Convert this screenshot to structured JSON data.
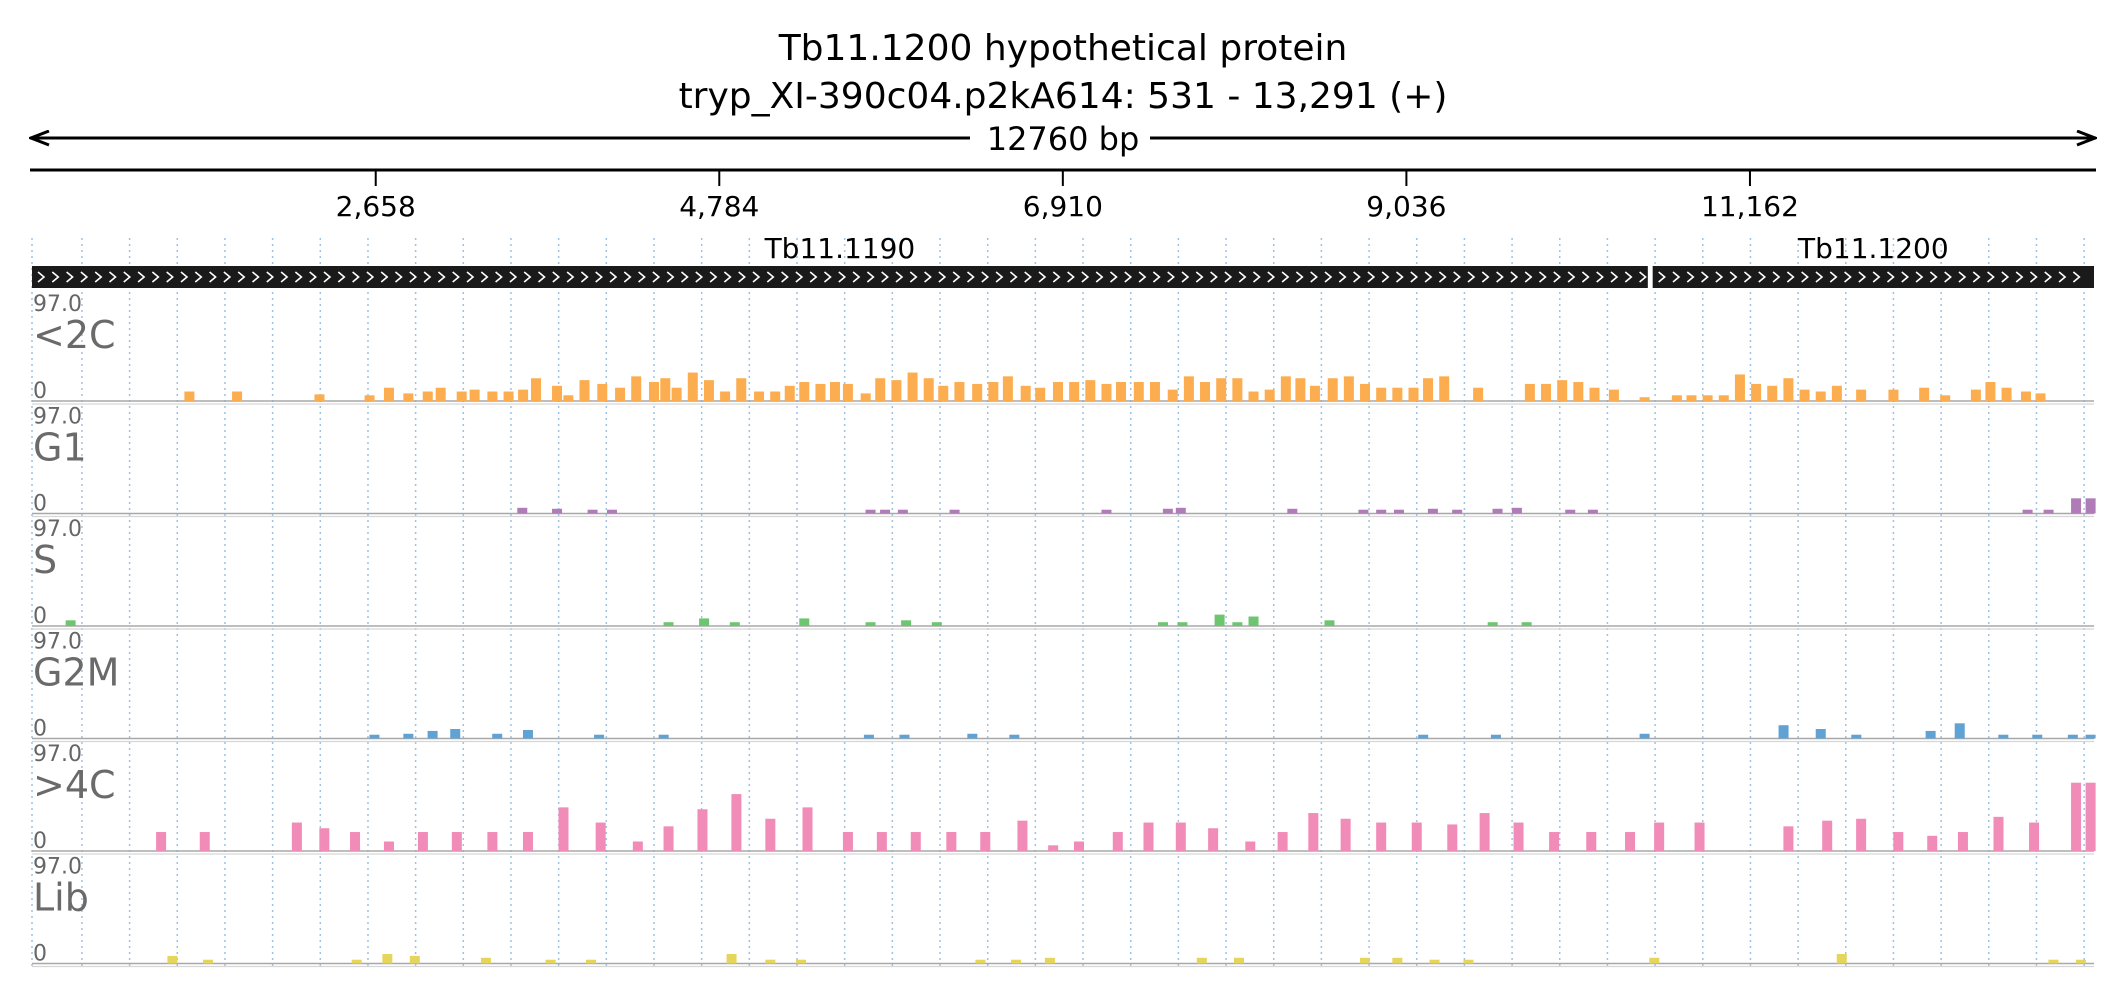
{
  "header": {
    "title_line1": "Tb11.1200  hypothetical protein",
    "title_line2": "tryp_XI-390c04.p2kA614: 531 - 13,291 (+)",
    "span_label": "12760 bp"
  },
  "chart_data": {
    "type": "bar",
    "x_range": [
      531,
      13291
    ],
    "ticks": [
      "2,658",
      "4,784",
      "6,910",
      "9,036",
      "11,162"
    ],
    "tick_values": [
      2658,
      4784,
      6910,
      9036,
      11162
    ],
    "genes": [
      {
        "name": "Tb11.1190",
        "start": 531,
        "end": 10530,
        "strand": "+"
      },
      {
        "name": "Tb11.1200",
        "start": 10560,
        "end": 13291,
        "strand": "+"
      }
    ],
    "track_max": "97.0",
    "track_min": "0",
    "grid": "vertical dotted lines",
    "tracks": [
      {
        "name": "<2C",
        "color": "#FBAD50",
        "bars": [
          [
            1505,
            10
          ],
          [
            1800,
            10
          ],
          [
            2310,
            7
          ],
          [
            2620,
            6
          ],
          [
            2740,
            14
          ],
          [
            2860,
            8
          ],
          [
            2980,
            10
          ],
          [
            3060,
            14
          ],
          [
            3190,
            10
          ],
          [
            3270,
            12
          ],
          [
            3380,
            10
          ],
          [
            3480,
            10
          ],
          [
            3570,
            12
          ],
          [
            3650,
            24
          ],
          [
            3780,
            16
          ],
          [
            3850,
            6
          ],
          [
            3950,
            22
          ],
          [
            4060,
            18
          ],
          [
            4170,
            14
          ],
          [
            4270,
            26
          ],
          [
            4380,
            20
          ],
          [
            4450,
            24
          ],
          [
            4520,
            14
          ],
          [
            4620,
            30
          ],
          [
            4720,
            22
          ],
          [
            4820,
            10
          ],
          [
            4920,
            24
          ],
          [
            5030,
            10
          ],
          [
            5130,
            10
          ],
          [
            5220,
            16
          ],
          [
            5310,
            20
          ],
          [
            5410,
            18
          ],
          [
            5500,
            20
          ],
          [
            5580,
            18
          ],
          [
            5690,
            8
          ],
          [
            5780,
            24
          ],
          [
            5880,
            22
          ],
          [
            5980,
            30
          ],
          [
            6080,
            24
          ],
          [
            6170,
            16
          ],
          [
            6270,
            20
          ],
          [
            6380,
            18
          ],
          [
            6480,
            20
          ],
          [
            6570,
            26
          ],
          [
            6680,
            16
          ],
          [
            6770,
            14
          ],
          [
            6880,
            20
          ],
          [
            6980,
            20
          ],
          [
            7080,
            22
          ],
          [
            7180,
            18
          ],
          [
            7270,
            20
          ],
          [
            7380,
            20
          ],
          [
            7480,
            20
          ],
          [
            7590,
            12
          ],
          [
            7690,
            26
          ],
          [
            7790,
            20
          ],
          [
            7890,
            24
          ],
          [
            7990,
            24
          ],
          [
            8090,
            10
          ],
          [
            8190,
            12
          ],
          [
            8290,
            26
          ],
          [
            8380,
            24
          ],
          [
            8470,
            16
          ],
          [
            8580,
            24
          ],
          [
            8680,
            26
          ],
          [
            8780,
            18
          ],
          [
            8880,
            14
          ],
          [
            8980,
            14
          ],
          [
            9080,
            14
          ],
          [
            9170,
            24
          ],
          [
            9270,
            26
          ],
          [
            9480,
            14
          ],
          [
            9800,
            18
          ],
          [
            9900,
            18
          ],
          [
            10000,
            22
          ],
          [
            10100,
            20
          ],
          [
            10200,
            14
          ],
          [
            10320,
            12
          ],
          [
            10510,
            4
          ],
          [
            10710,
            6
          ],
          [
            10800,
            6
          ],
          [
            10900,
            6
          ],
          [
            11000,
            6
          ],
          [
            11100,
            28
          ],
          [
            11200,
            18
          ],
          [
            11300,
            16
          ],
          [
            11400,
            24
          ],
          [
            11500,
            12
          ],
          [
            11600,
            10
          ],
          [
            11700,
            16
          ],
          [
            11850,
            12
          ],
          [
            12050,
            12
          ],
          [
            12240,
            14
          ],
          [
            12370,
            6
          ],
          [
            12560,
            12
          ],
          [
            12650,
            20
          ],
          [
            12750,
            14
          ],
          [
            12870,
            10
          ],
          [
            12960,
            8
          ]
        ]
      },
      {
        "name": "G1",
        "color": "#B07CB8",
        "bars": [
          [
            3565,
            6
          ],
          [
            3780,
            5
          ],
          [
            4000,
            4
          ],
          [
            4120,
            4
          ],
          [
            5720,
            4
          ],
          [
            5810,
            4
          ],
          [
            5920,
            4
          ],
          [
            6240,
            4
          ],
          [
            7180,
            4
          ],
          [
            7560,
            5
          ],
          [
            7640,
            6
          ],
          [
            8330,
            5
          ],
          [
            8770,
            4
          ],
          [
            8880,
            4
          ],
          [
            8990,
            4
          ],
          [
            9200,
            5
          ],
          [
            9350,
            4
          ],
          [
            9600,
            5
          ],
          [
            9720,
            6
          ],
          [
            10050,
            4
          ],
          [
            10190,
            4
          ],
          [
            12880,
            4
          ],
          [
            13010,
            4
          ],
          [
            13180,
            16
          ],
          [
            13270,
            16
          ]
        ]
      },
      {
        "name": "S",
        "color": "#6DC570",
        "bars": [
          [
            770,
            6
          ],
          [
            4470,
            4
          ],
          [
            4690,
            8
          ],
          [
            4880,
            4
          ],
          [
            5310,
            8
          ],
          [
            5720,
            4
          ],
          [
            5940,
            6
          ],
          [
            6130,
            4
          ],
          [
            7530,
            4
          ],
          [
            7650,
            4
          ],
          [
            7880,
            12
          ],
          [
            7990,
            4
          ],
          [
            8090,
            10
          ],
          [
            8560,
            6
          ],
          [
            9570,
            4
          ],
          [
            9780,
            4
          ]
        ]
      },
      {
        "name": "G2M",
        "color": "#5FA2D3",
        "bars": [
          [
            2650,
            4
          ],
          [
            2860,
            5
          ],
          [
            3010,
            8
          ],
          [
            3150,
            10
          ],
          [
            3410,
            5
          ],
          [
            3600,
            9
          ],
          [
            4040,
            4
          ],
          [
            4440,
            4
          ],
          [
            5710,
            4
          ],
          [
            5930,
            4
          ],
          [
            6350,
            5
          ],
          [
            6610,
            4
          ],
          [
            9140,
            4
          ],
          [
            9590,
            4
          ],
          [
            10510,
            5
          ],
          [
            11370,
            14
          ],
          [
            11600,
            10
          ],
          [
            11820,
            4
          ],
          [
            12280,
            8
          ],
          [
            12460,
            16
          ],
          [
            12730,
            4
          ],
          [
            12940,
            4
          ],
          [
            13160,
            4
          ],
          [
            13270,
            4
          ]
        ]
      },
      {
        "name": ">4C",
        "color": "#F18BB8",
        "bars": [
          [
            1330,
            20
          ],
          [
            1600,
            20
          ],
          [
            2170,
            30
          ],
          [
            2340,
            24
          ],
          [
            2530,
            20
          ],
          [
            2740,
            10
          ],
          [
            2950,
            20
          ],
          [
            3160,
            20
          ],
          [
            3380,
            20
          ],
          [
            3600,
            20
          ],
          [
            3820,
            46
          ],
          [
            4050,
            30
          ],
          [
            4280,
            10
          ],
          [
            4470,
            26
          ],
          [
            4680,
            44
          ],
          [
            4890,
            60
          ],
          [
            5100,
            34
          ],
          [
            5330,
            46
          ],
          [
            5580,
            20
          ],
          [
            5790,
            20
          ],
          [
            6000,
            20
          ],
          [
            6220,
            20
          ],
          [
            6430,
            20
          ],
          [
            6660,
            32
          ],
          [
            6850,
            6
          ],
          [
            7010,
            10
          ],
          [
            7250,
            20
          ],
          [
            7440,
            30
          ],
          [
            7640,
            30
          ],
          [
            7840,
            24
          ],
          [
            8070,
            10
          ],
          [
            8270,
            20
          ],
          [
            8460,
            40
          ],
          [
            8660,
            34
          ],
          [
            8880,
            30
          ],
          [
            9100,
            30
          ],
          [
            9320,
            28
          ],
          [
            9520,
            40
          ],
          [
            9730,
            30
          ],
          [
            9950,
            20
          ],
          [
            10180,
            20
          ],
          [
            10420,
            20
          ],
          [
            10600,
            30
          ],
          [
            10850,
            30
          ],
          [
            11400,
            26
          ],
          [
            11640,
            32
          ],
          [
            11850,
            34
          ],
          [
            12080,
            20
          ],
          [
            12290,
            16
          ],
          [
            12480,
            20
          ],
          [
            12700,
            36
          ],
          [
            12920,
            30
          ],
          [
            13180,
            72
          ],
          [
            13270,
            72
          ]
        ]
      },
      {
        "name": "Lib",
        "color": "#E5D55A",
        "bars": [
          [
            1400,
            8
          ],
          [
            1620,
            4
          ],
          [
            2540,
            4
          ],
          [
            2730,
            10
          ],
          [
            2900,
            8
          ],
          [
            3340,
            6
          ],
          [
            3740,
            4
          ],
          [
            3990,
            4
          ],
          [
            4860,
            10
          ],
          [
            5100,
            4
          ],
          [
            5290,
            4
          ],
          [
            6400,
            4
          ],
          [
            6620,
            4
          ],
          [
            6830,
            6
          ],
          [
            7770,
            6
          ],
          [
            8000,
            6
          ],
          [
            8780,
            6
          ],
          [
            8980,
            6
          ],
          [
            9210,
            4
          ],
          [
            9420,
            4
          ],
          [
            10570,
            6
          ],
          [
            11730,
            10
          ],
          [
            13040,
            4
          ],
          [
            13210,
            4
          ]
        ]
      }
    ]
  }
}
